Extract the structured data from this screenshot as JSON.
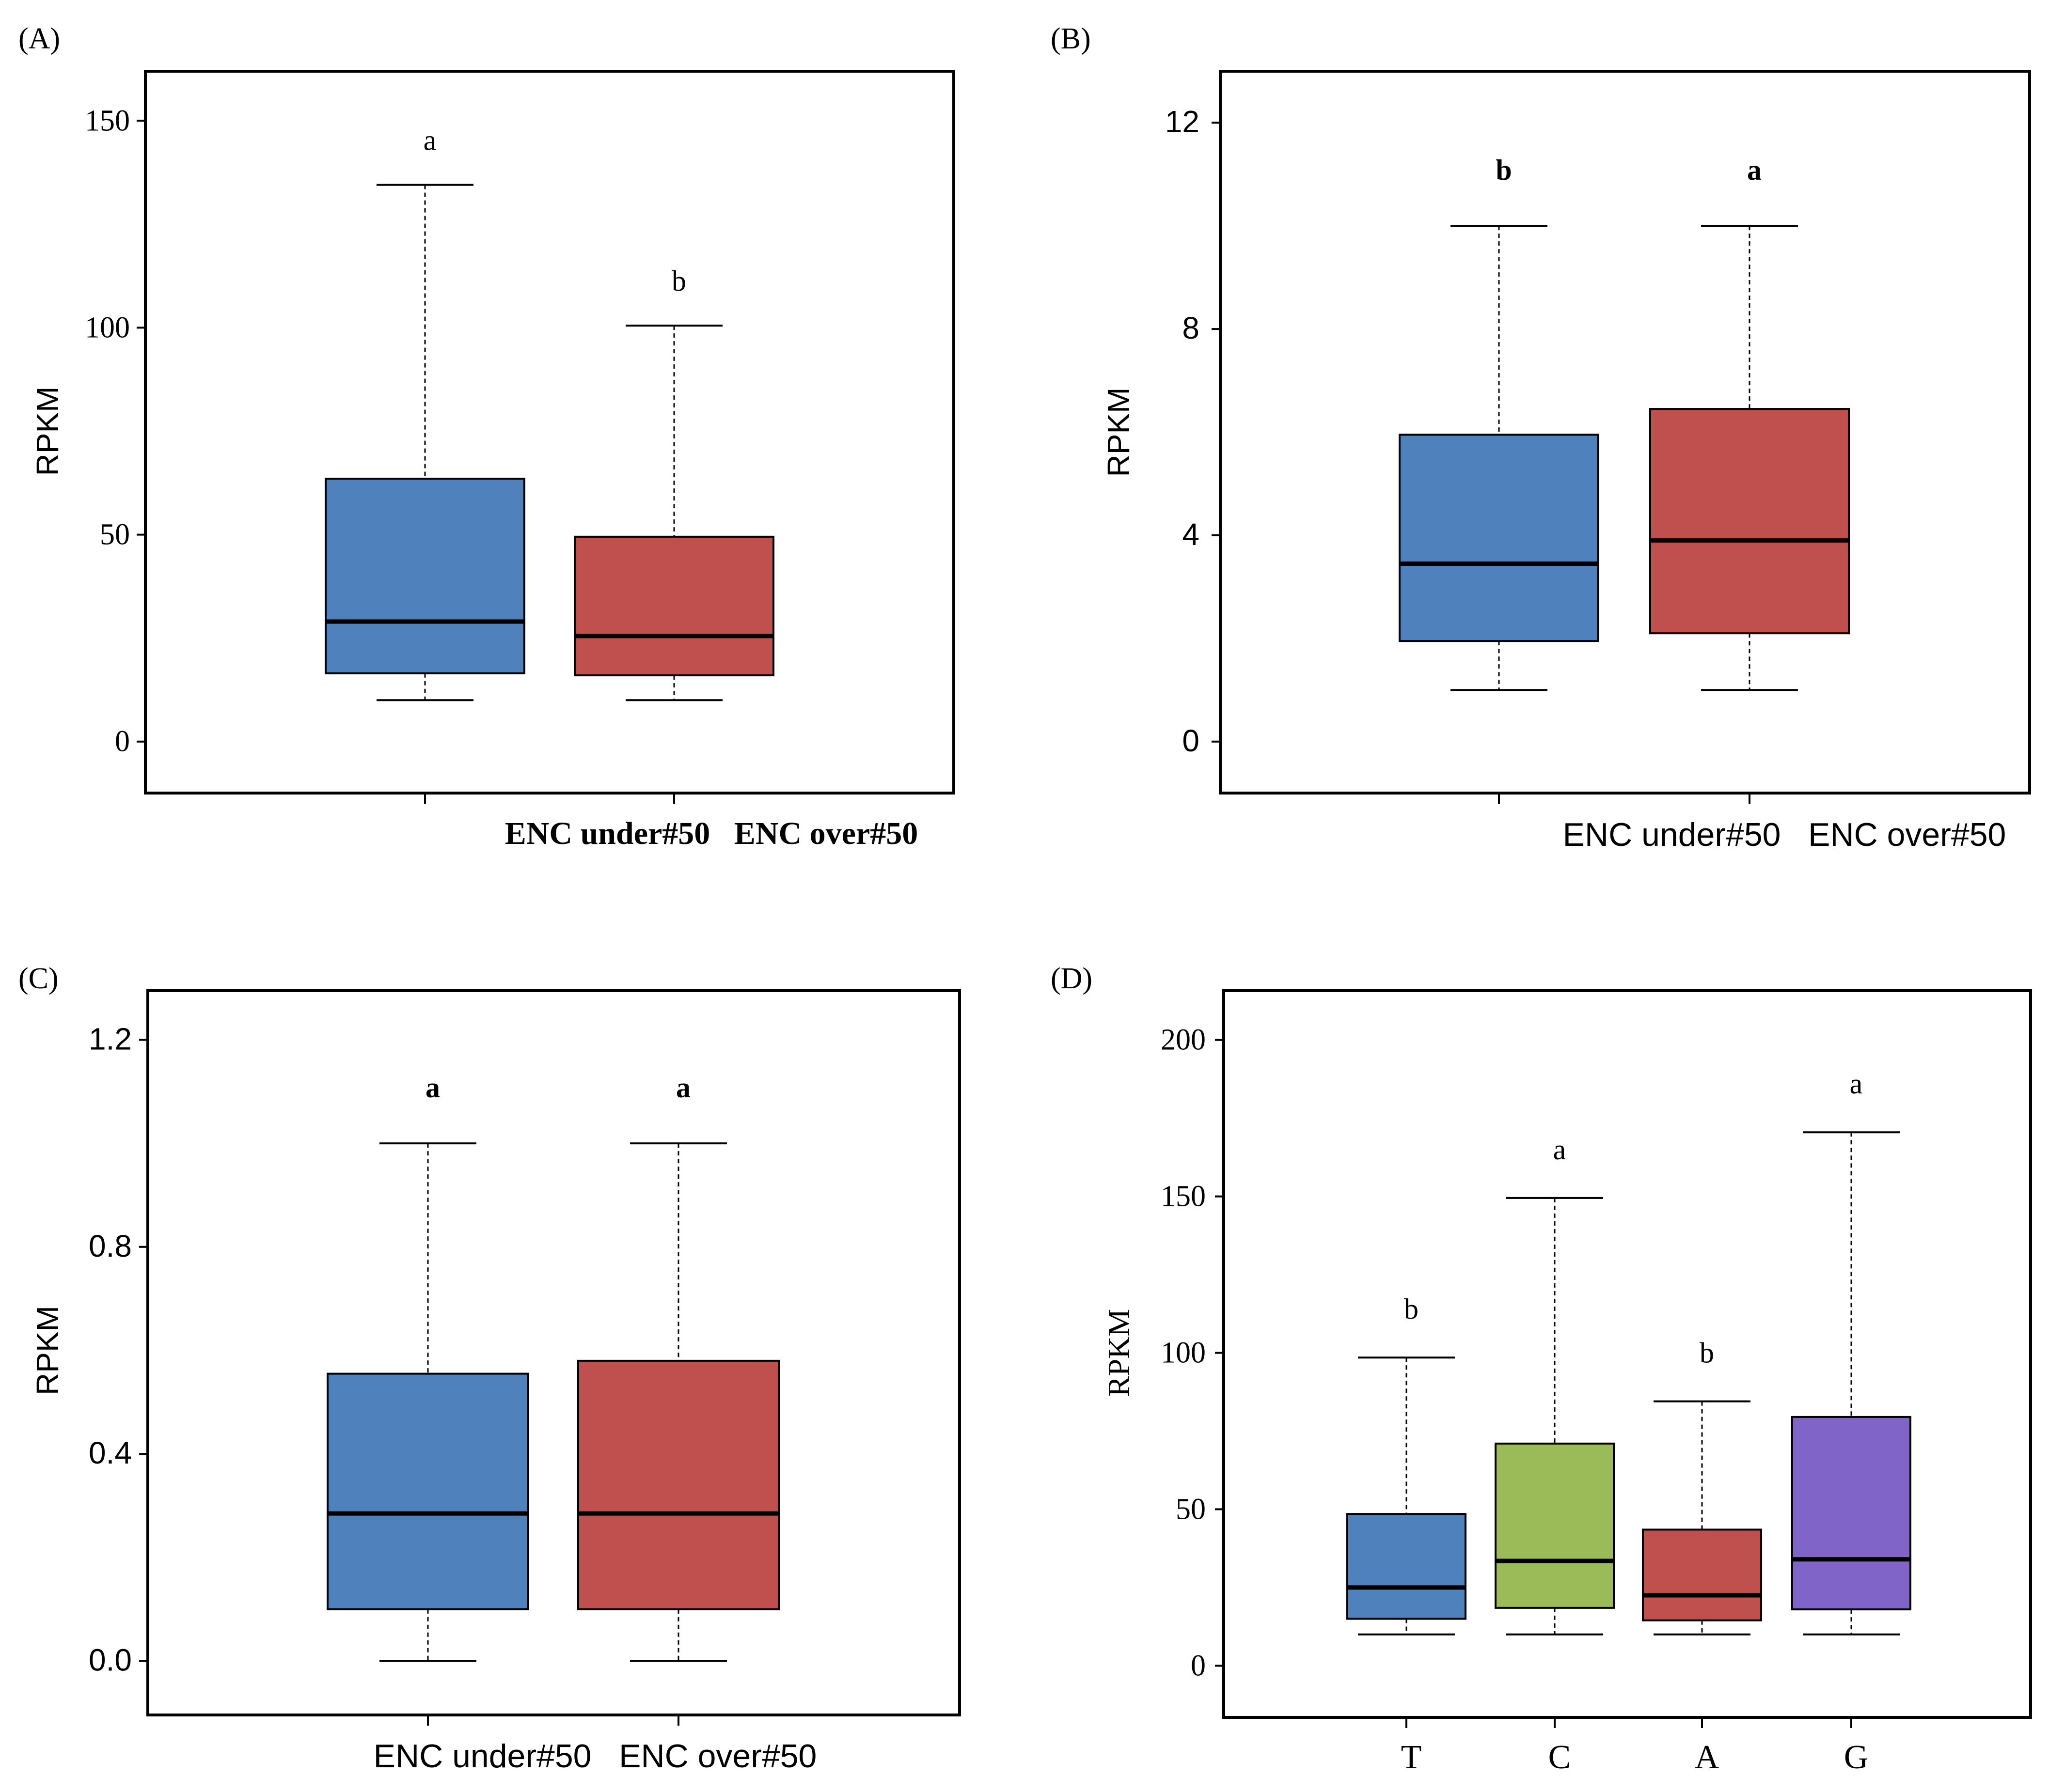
{
  "colors": {
    "blue": "#4f81bd",
    "red": "#c0504d",
    "green": "#9bbb59",
    "purple": "#8064c8",
    "median": "#000000",
    "frame": "#000000"
  },
  "chart_data": [
    {
      "type": "box",
      "panel_label": "(A)",
      "ylabel": "RPKM",
      "ylim": [
        -6,
        156
      ],
      "yticks": [
        0,
        50,
        100,
        150
      ],
      "ytick_labels": [
        "0",
        "50",
        "100",
        "150"
      ],
      "grid": false,
      "categories": [
        "ENC under#50",
        "ENC over#50"
      ],
      "category_label_text": "ENC under#50   ENC over#50",
      "boxes": [
        {
          "name": "ENC under#50",
          "min": 10,
          "q1": 16.5,
          "median": 29,
          "q3": 63.5,
          "max": 134.5,
          "significance": "a",
          "color": "#4f81bd"
        },
        {
          "name": "ENC over#50",
          "min": 10,
          "q1": 16,
          "median": 25.5,
          "q3": 49.5,
          "max": 100.5,
          "significance": "b",
          "color": "#c0504d"
        }
      ]
    },
    {
      "type": "box",
      "panel_label": "(B)",
      "ylabel": "RPKM",
      "ylim": [
        -0.5,
        12.5
      ],
      "yticks": [
        0,
        4,
        8,
        12
      ],
      "ytick_labels": [
        "0",
        "4",
        "8",
        "12"
      ],
      "grid": false,
      "categories": [
        "ENC under#50",
        "ENC over#50"
      ],
      "category_label_text": "ENC under#50   ENC over#50",
      "boxes": [
        {
          "name": "ENC under#50",
          "min": 1,
          "q1": 1.95,
          "median": 3.45,
          "q3": 5.95,
          "max": 10,
          "significance": "b",
          "color": "#4f81bd"
        },
        {
          "name": "ENC over#50",
          "min": 1,
          "q1": 2.1,
          "median": 3.9,
          "q3": 6.45,
          "max": 10,
          "significance": "a",
          "color": "#c0504d"
        }
      ]
    },
    {
      "type": "box",
      "panel_label": "(C)",
      "ylabel": "RPKM",
      "ylim": [
        -0.05,
        1.25
      ],
      "yticks": [
        0.0,
        0.4,
        0.8,
        1.2
      ],
      "ytick_labels": [
        "0.0",
        "0.4",
        "0.8",
        "1.2"
      ],
      "grid": false,
      "categories": [
        "ENC under#50",
        "ENC over#50"
      ],
      "category_label_text": "ENC under#50   ENC over#50",
      "boxes": [
        {
          "name": "ENC under#50",
          "min": 0.0,
          "q1": 0.1,
          "median": 0.285,
          "q3": 0.555,
          "max": 1.0,
          "significance": "a",
          "color": "#4f81bd"
        },
        {
          "name": "ENC over#50",
          "min": 0.0,
          "q1": 0.1,
          "median": 0.285,
          "q3": 0.58,
          "max": 1.0,
          "significance": "a",
          "color": "#c0504d"
        }
      ]
    },
    {
      "type": "box",
      "panel_label": "(D)",
      "ylabel": "RPKM",
      "ylim": [
        -8,
        208
      ],
      "yticks": [
        0,
        50,
        100,
        150,
        200
      ],
      "ytick_labels": [
        "0",
        "50",
        "100",
        "150",
        "200"
      ],
      "grid": false,
      "categories": [
        "T",
        "C",
        "A",
        "G"
      ],
      "boxes": [
        {
          "name": "T",
          "min": 10,
          "q1": 15,
          "median": 25,
          "q3": 48.5,
          "max": 98.5,
          "significance": "b",
          "color": "#4f81bd"
        },
        {
          "name": "C",
          "min": 10,
          "q1": 18.5,
          "median": 33.5,
          "q3": 71,
          "max": 149.5,
          "significance": "a",
          "color": "#9bbb59"
        },
        {
          "name": "A",
          "min": 10,
          "q1": 14.5,
          "median": 22.5,
          "q3": 43.5,
          "max": 84.5,
          "significance": "b",
          "color": "#c0504d"
        },
        {
          "name": "G",
          "min": 10,
          "q1": 18,
          "median": 34,
          "q3": 79.5,
          "max": 170.5,
          "significance": "a",
          "color": "#8064c8"
        }
      ]
    }
  ]
}
